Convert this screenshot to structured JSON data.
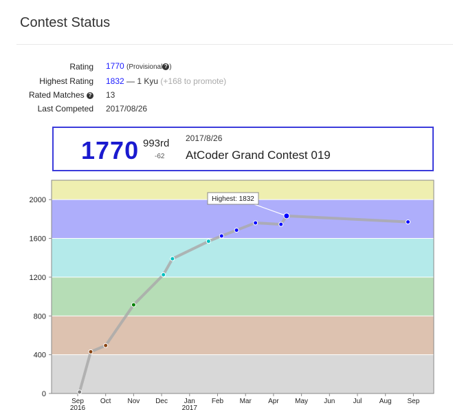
{
  "header": {
    "title": "Contest Status"
  },
  "info": {
    "rating_label": "Rating",
    "rating_value": "1770",
    "provisional": "(Provisional",
    "provisional_close": ")",
    "highest_label": "Highest Rating",
    "highest_value": "1832",
    "highest_rank": "— 1 Kyu",
    "promote_note": "(+168 to promote)",
    "matches_label": "Rated Matches",
    "matches_value": "13",
    "last_label": "Last Competed",
    "last_value": "2017/08/26"
  },
  "status_box": {
    "rating": "1770",
    "place": "993rd",
    "diff": "-62",
    "date": "2017/8/26",
    "contest": "AtCoder Grand Contest 019"
  },
  "chart_data": {
    "type": "line",
    "ylim": [
      0,
      2200
    ],
    "yticks": [
      0,
      400,
      800,
      1200,
      1600,
      2000
    ],
    "bands": [
      {
        "from": 0,
        "to": 400,
        "color": "#d8d8d8"
      },
      {
        "from": 400,
        "to": 800,
        "color": "#ddc2b0"
      },
      {
        "from": 800,
        "to": 1200,
        "color": "#b6ddb6"
      },
      {
        "from": 1200,
        "to": 1600,
        "color": "#b4eaea"
      },
      {
        "from": 1600,
        "to": 2000,
        "color": "#aeaefb"
      },
      {
        "from": 2000,
        "to": 2200,
        "color": "#efefb0"
      }
    ],
    "x_ticks": [
      "Sep",
      "Oct",
      "Nov",
      "Dec",
      "Jan",
      "Feb",
      "Mar",
      "Apr",
      "May",
      "Jun",
      "Jul",
      "Aug",
      "Sep"
    ],
    "year_labels": [
      {
        "month_index": 0,
        "text": "2016"
      },
      {
        "month_index": 4,
        "text": "2017"
      }
    ],
    "points": [
      {
        "x": "2016-09-03",
        "y": 15,
        "color": "#808080"
      },
      {
        "x": "2016-09-15",
        "y": 430,
        "color": "#8b4513"
      },
      {
        "x": "2016-10-01",
        "y": 495,
        "color": "#8b4513"
      },
      {
        "x": "2016-11-01",
        "y": 915,
        "color": "#008000"
      },
      {
        "x": "2016-12-03",
        "y": 1225,
        "color": "#00c0c0"
      },
      {
        "x": "2016-12-13",
        "y": 1390,
        "color": "#00c0c0"
      },
      {
        "x": "2017-01-22",
        "y": 1570,
        "color": "#00c0c0"
      },
      {
        "x": "2017-02-05",
        "y": 1625,
        "color": "#0000ff"
      },
      {
        "x": "2017-02-20",
        "y": 1685,
        "color": "#0000ff"
      },
      {
        "x": "2017-03-12",
        "y": 1760,
        "color": "#0000ff"
      },
      {
        "x": "2017-04-09",
        "y": 1745,
        "color": "#0000ff"
      },
      {
        "x": "2017-04-15",
        "y": 1832,
        "color": "#0000ff"
      },
      {
        "x": "2017-08-26",
        "y": 1770,
        "color": "#0000ff"
      }
    ],
    "highest_index": 11,
    "highest_label": "Highest: 1832"
  }
}
